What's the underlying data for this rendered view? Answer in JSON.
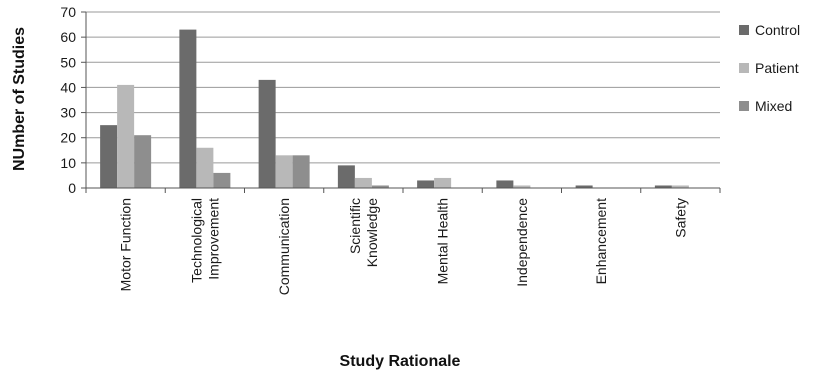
{
  "chart_data": {
    "type": "bar",
    "title": "",
    "xlabel": "Study Rationale",
    "ylabel": "NUmber of Studies",
    "ylim": [
      0,
      70
    ],
    "yticks": [
      0,
      10,
      20,
      30,
      40,
      50,
      60,
      70
    ],
    "grid": true,
    "legend_position": "right",
    "categories": [
      [
        "Motor Function"
      ],
      [
        "Technological",
        "Improvement"
      ],
      [
        "Communication"
      ],
      [
        "Scientific",
        "Knowledge"
      ],
      [
        "Mental Health"
      ],
      [
        "Independence"
      ],
      [
        "Enhancement"
      ],
      [
        "Safety"
      ]
    ],
    "series": [
      {
        "name": "Control",
        "color": "#6b6b6b",
        "values": [
          25,
          63,
          43,
          9,
          3,
          3,
          1,
          1
        ]
      },
      {
        "name": "Patient",
        "color": "#b8b8b8",
        "values": [
          41,
          16,
          13,
          4,
          4,
          1,
          0,
          1
        ]
      },
      {
        "name": "Mixed",
        "color": "#8e8e8e",
        "values": [
          21,
          6,
          13,
          1,
          0,
          0,
          0,
          0
        ]
      }
    ]
  }
}
